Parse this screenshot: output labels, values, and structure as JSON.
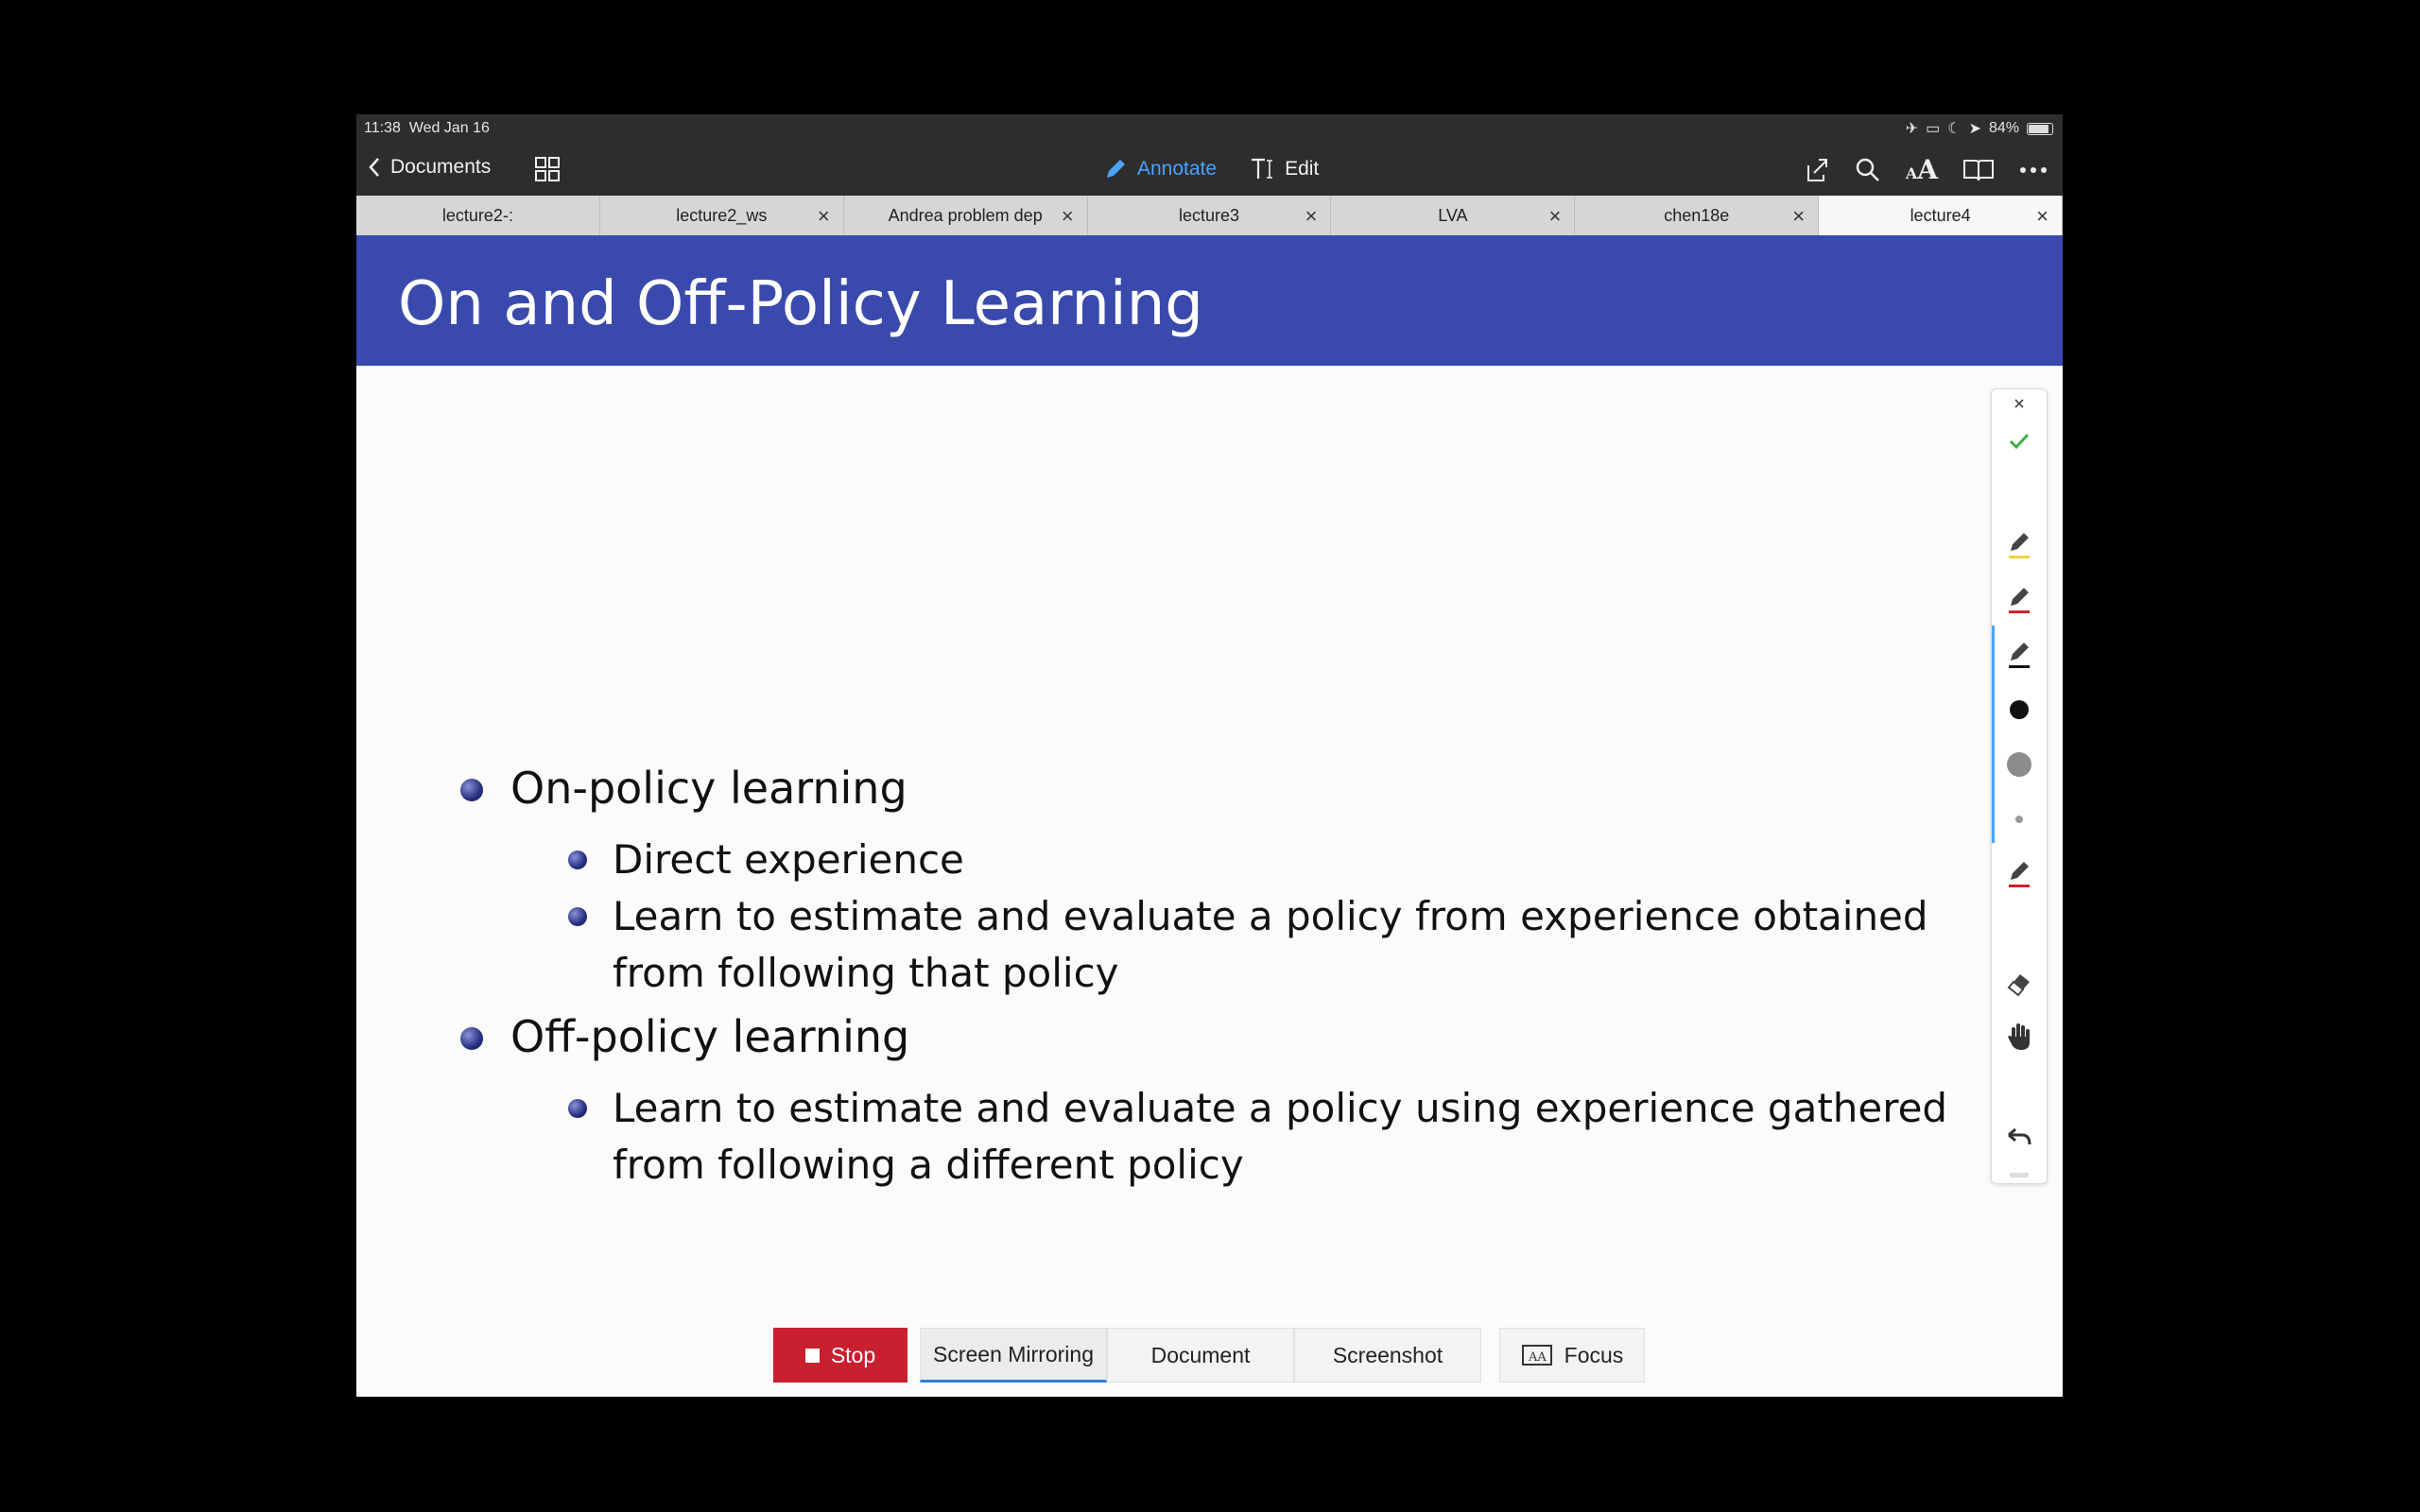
{
  "status_bar": {
    "time": "11:38",
    "date": "Wed Jan 16",
    "battery": "84%"
  },
  "navbar": {
    "back_label": "Documents",
    "annotate_label": "Annotate",
    "edit_label": "Edit"
  },
  "tabs": [
    {
      "label": "lecture2-:",
      "closable": false,
      "active": false
    },
    {
      "label": "lecture2_ws",
      "closable": true,
      "active": false
    },
    {
      "label": "Andrea problem dep",
      "closable": true,
      "active": false
    },
    {
      "label": "lecture3",
      "closable": true,
      "active": false
    },
    {
      "label": "LVA",
      "closable": true,
      "active": false
    },
    {
      "label": "chen18e",
      "closable": true,
      "active": false
    },
    {
      "label": "lecture4",
      "closable": true,
      "active": true
    }
  ],
  "slide": {
    "title": "On and Off-Policy Learning",
    "bullets": [
      {
        "text": "On-policy learning",
        "sub": [
          "Direct experience",
          "Learn to estimate and evaluate a policy from experience obtained from following that policy"
        ]
      },
      {
        "text": "Off-policy learning",
        "sub": [
          "Learn to estimate and evaluate a policy using experience gathered from following a different policy"
        ]
      }
    ]
  },
  "palette": {
    "icons": [
      "close-icon",
      "checkmark-icon",
      "pen-yellow-icon",
      "pen-red-icon",
      "pen-black-icon",
      "dot-large-icon",
      "dot-medium-icon",
      "dot-small-icon",
      "pen-red-2-icon",
      "eraser-icon",
      "hand-icon",
      "undo-icon"
    ],
    "colors": {
      "yellow": "#f2d33a",
      "red": "#d2232a",
      "black": "#111111",
      "green": "#3cb043"
    }
  },
  "bottom_bar": {
    "stop_label": "Stop",
    "screen_mirroring_label": "Screen Mirroring",
    "document_label": "Document",
    "screenshot_label": "Screenshot",
    "focus_label": "Focus"
  }
}
